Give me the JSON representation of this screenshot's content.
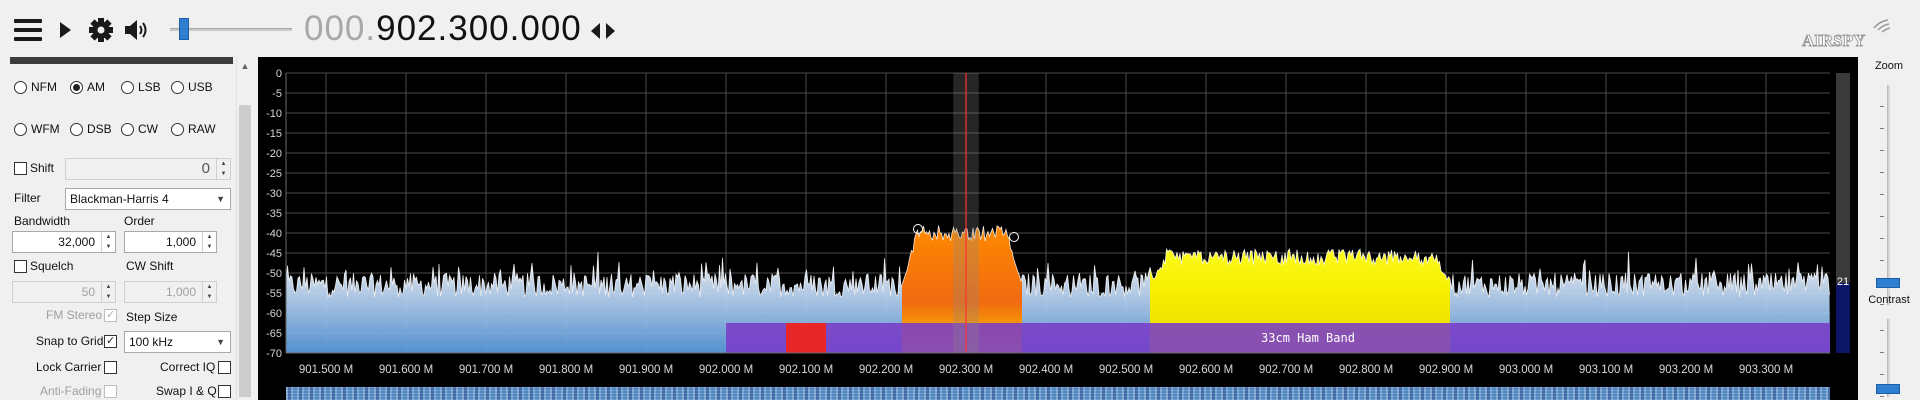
{
  "toolbar": {
    "icons": [
      "menu-icon",
      "play-icon",
      "gear-icon",
      "speaker-icon",
      "left-right-arrows-icon"
    ],
    "volume_level": 0.08
  },
  "vfo": {
    "dim_part": "000.",
    "bright_part": "902.300.000"
  },
  "logo": {
    "text": "AIRSPY"
  },
  "modes": {
    "row1": [
      {
        "label": "NFM",
        "selected": false
      },
      {
        "label": "AM",
        "selected": true
      },
      {
        "label": "LSB",
        "selected": false
      },
      {
        "label": "USB",
        "selected": false
      }
    ],
    "row2": [
      {
        "label": "WFM",
        "selected": false
      },
      {
        "label": "DSB",
        "selected": false
      },
      {
        "label": "CW",
        "selected": false
      },
      {
        "label": "RAW",
        "selected": false
      }
    ]
  },
  "radio_panel": {
    "shift_label": "Shift",
    "shift_checked": false,
    "shift_value": "0",
    "filter_label": "Filter",
    "filter_value": "Blackman-Harris 4",
    "bandwidth_label": "Bandwidth",
    "bandwidth_value": "32,000",
    "order_label": "Order",
    "order_value": "1,000",
    "squelch_label": "Squelch",
    "squelch_checked": false,
    "squelch_value": "50",
    "cw_shift_label": "CW Shift",
    "cw_shift_value": "1,000",
    "fm_stereo_label": "FM Stereo",
    "fm_stereo_checked": true,
    "step_size_label": "Step Size",
    "snap_to_grid_label": "Snap to Grid",
    "snap_to_grid_checked": true,
    "step_size_value": "100 kHz",
    "lock_carrier_label": "Lock Carrier",
    "lock_carrier_checked": false,
    "correct_iq_label": "Correct IQ",
    "correct_iq_checked": false,
    "anti_fading_label": "Anti-Fading",
    "anti_fading_checked": false,
    "swap_iq_label": "Swap I & Q",
    "swap_iq_checked": false
  },
  "spectrum": {
    "y_ticks": [
      "0",
      "-5",
      "-10",
      "-15",
      "-20",
      "-25",
      "-30",
      "-35",
      "-40",
      "-45",
      "-50",
      "-55",
      "-60",
      "-65",
      "-70"
    ],
    "y_range": [
      -70,
      0
    ],
    "x_ticks": [
      "901.500 M",
      "901.600 M",
      "901.700 M",
      "901.800 M",
      "901.900 M",
      "902.000 M",
      "902.100 M",
      "902.200 M",
      "902.300 M",
      "902.400 M",
      "902.500 M",
      "902.600 M",
      "902.700 M",
      "902.800 M",
      "902.900 M",
      "903.000 M",
      "903.100 M",
      "903.200 M",
      "903.300 M"
    ],
    "x_range_mhz": [
      901.45,
      903.38
    ],
    "center_mhz": 902.3,
    "filter_bandwidth_khz": 32,
    "noise_floor_db": -53,
    "signals": [
      {
        "start_mhz": 902.22,
        "end_mhz": 902.37,
        "level_db": -40
      },
      {
        "start_mhz": 902.53,
        "end_mhz": 902.905,
        "level_db": -46
      }
    ],
    "band_plan": {
      "label": "33cm Ham Band",
      "start_mhz": 902.0,
      "end_mhz": 903.38,
      "color": "#7a3cc8",
      "marker_start_mhz": 902.075,
      "marker_end_mhz": 902.125,
      "marker_color": "#e82828"
    },
    "side_value": "21"
  },
  "right_panel": {
    "zoom_label": "Zoom",
    "zoom_level": 0.08,
    "contrast_label": "Contrast",
    "contrast_level": 0.05
  }
}
